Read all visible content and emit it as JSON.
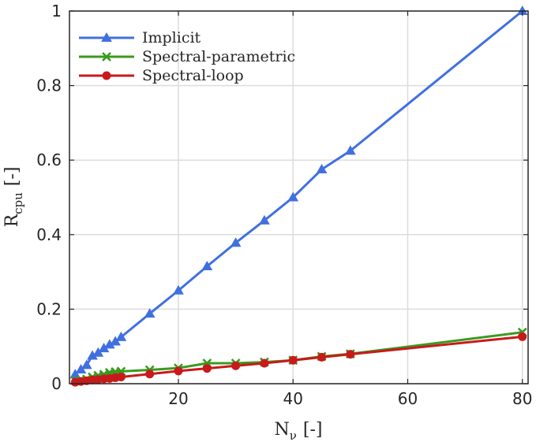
{
  "chart_data": {
    "type": "line",
    "title": "",
    "xlabel": "N",
    "xlabel_sub": "ν",
    "xlabel_unit": "[-]",
    "ylabel": "R",
    "ylabel_sub": "cpu",
    "ylabel_unit": "[-]",
    "xlim": [
      1,
      81
    ],
    "ylim": [
      0,
      1
    ],
    "xticks": [
      20,
      40,
      60,
      80
    ],
    "yticks": [
      0,
      0.2,
      0.4,
      0.6,
      0.8,
      1
    ],
    "xtick_labels": [
      "20",
      "40",
      "60",
      "80"
    ],
    "ytick_labels": [
      "0",
      "0.2",
      "0.4",
      "0.6",
      "0.8",
      "1"
    ],
    "grid": true,
    "legend_position": "top-left",
    "series": [
      {
        "name": "Implicit",
        "color": "#4070e0",
        "marker": "triangle",
        "x": [
          2,
          3,
          4,
          5,
          6,
          7,
          8,
          9,
          10,
          15,
          20,
          25,
          30,
          35,
          40,
          45,
          50,
          80
        ],
        "y": [
          0.025,
          0.038,
          0.05,
          0.075,
          0.083,
          0.095,
          0.105,
          0.113,
          0.125,
          0.188,
          0.25,
          0.315,
          0.378,
          0.438,
          0.5,
          0.575,
          0.625,
          1.0
        ]
      },
      {
        "name": "Spectral-parametric",
        "color": "#3a9a1f",
        "marker": "x",
        "x": [
          2,
          3,
          4,
          5,
          6,
          7,
          8,
          9,
          10,
          15,
          20,
          25,
          30,
          35,
          40,
          45,
          50,
          80
        ],
        "y": [
          0.008,
          0.01,
          0.012,
          0.018,
          0.022,
          0.025,
          0.03,
          0.032,
          0.033,
          0.037,
          0.042,
          0.055,
          0.055,
          0.058,
          0.063,
          0.073,
          0.08,
          0.138
        ]
      },
      {
        "name": "Spectral-loop",
        "color": "#c81a1a",
        "marker": "circle",
        "x": [
          2,
          3,
          4,
          5,
          6,
          7,
          8,
          9,
          10,
          15,
          20,
          25,
          30,
          35,
          40,
          45,
          50,
          80
        ],
        "y": [
          0.004,
          0.006,
          0.008,
          0.01,
          0.011,
          0.013,
          0.014,
          0.016,
          0.018,
          0.026,
          0.034,
          0.041,
          0.048,
          0.055,
          0.063,
          0.071,
          0.079,
          0.126
        ]
      }
    ]
  }
}
